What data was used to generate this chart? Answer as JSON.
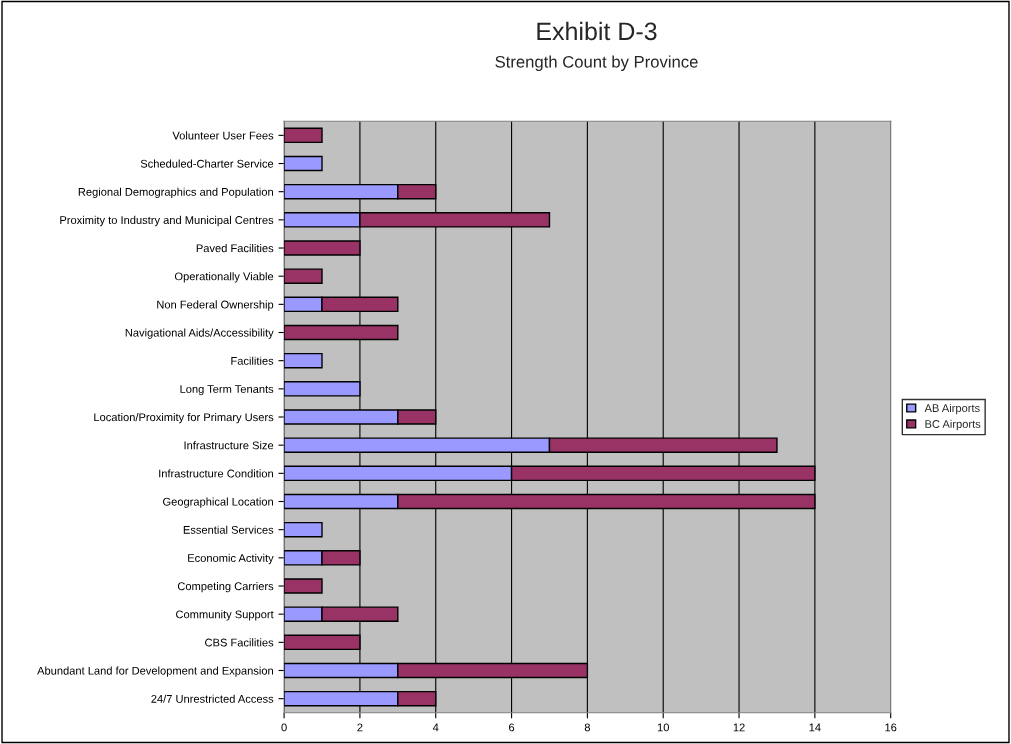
{
  "chart_data": {
    "type": "bar",
    "orientation": "horizontal",
    "stacked": true,
    "title": "Exhibit D-3",
    "subtitle": "Strength Count by Province",
    "categories": [
      "Volunteer User Fees",
      "Scheduled-Charter Service",
      "Regional Demographics and Population",
      "Proximity to Industry and Municipal Centres",
      "Paved Facilities",
      "Operationally Viable",
      "Non Federal Ownership",
      "Navigational Aids/Accessibility",
      "Facilities",
      "Long Term Tenants",
      "Location/Proximity for Primary Users",
      "Infrastructure Size",
      "Infrastructure Condition",
      "Geographical Location",
      "Essential Services",
      "Economic Activity",
      "Competing Carriers",
      "Community Support",
      "CBS Facilities",
      "Abundant Land for Development and Expansion",
      "24/7 Unrestricted Access"
    ],
    "series": [
      {
        "name": "AB Airports",
        "color": "#9999ff",
        "values": [
          0,
          1,
          3,
          2,
          0,
          0,
          1,
          0,
          1,
          2,
          3,
          7,
          6,
          3,
          1,
          1,
          0,
          1,
          0,
          3,
          3
        ]
      },
      {
        "name": "BC Airports",
        "color": "#993366",
        "values": [
          1,
          0,
          1,
          5,
          2,
          1,
          2,
          3,
          0,
          0,
          1,
          6,
          8,
          11,
          0,
          1,
          1,
          2,
          2,
          5,
          1
        ]
      }
    ],
    "xlim": [
      0,
      16
    ],
    "xticks": [
      0,
      2,
      4,
      6,
      8,
      10,
      12,
      14,
      16
    ],
    "grid": "x",
    "legend": "right"
  }
}
